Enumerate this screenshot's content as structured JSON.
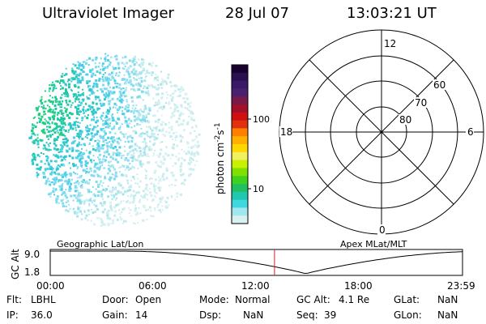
{
  "header": {
    "title": "Ultraviolet Imager",
    "date": "28 Jul 07",
    "time": "13:03:21 UT"
  },
  "colorbar": {
    "ylabel_main": "photon cm",
    "ylabel_exp1": "-2",
    "ylabel_mid": "s",
    "ylabel_exp2": "-1",
    "ticks": [
      "100",
      "10"
    ],
    "colors": [
      "#1a0030",
      "#2a1050",
      "#3a1a68",
      "#4a2070",
      "#7a1848",
      "#a01028",
      "#d01010",
      "#e03010",
      "#ff8000",
      "#ffb000",
      "#ffd800",
      "#f0f060",
      "#c8f000",
      "#80e000",
      "#40d020",
      "#20c060",
      "#20c8b0",
      "#40d8e0",
      "#a0e8f0",
      "#d8f0f0"
    ]
  },
  "polar": {
    "labels": {
      "top": "12",
      "bottom": "0",
      "left": "18",
      "right": "6",
      "lat60": "60",
      "lat70": "70",
      "lat80": "80"
    }
  },
  "orbit": {
    "left_label": "Geographic Lat/Lon",
    "right_label": "Apex MLat/MLT",
    "ylabel": "GC Alt",
    "y_ticks": [
      "9.0",
      "1.8"
    ],
    "x_ticks": [
      "00:00",
      "06:00",
      "12:00",
      "18:00",
      "23:59"
    ],
    "current_time_frac": 0.544
  },
  "info": {
    "flt": {
      "label": "Flt:",
      "value": "LBHL"
    },
    "ip": {
      "label": "IP:",
      "value": "36.0"
    },
    "door": {
      "label": "Door:",
      "value": "Open"
    },
    "gain": {
      "label": "Gain:",
      "value": "14"
    },
    "mode": {
      "label": "Mode:",
      "value": "Normal"
    },
    "dsp": {
      "label": "Dsp:",
      "value": "NaN"
    },
    "gcalt": {
      "label": "GC Alt:",
      "value": "4.1 Re"
    },
    "seq": {
      "label": "Seq:",
      "value": "39"
    },
    "glat": {
      "label": "GLat:",
      "value": "NaN"
    },
    "glon": {
      "label": "GLon:",
      "value": "NaN"
    }
  }
}
